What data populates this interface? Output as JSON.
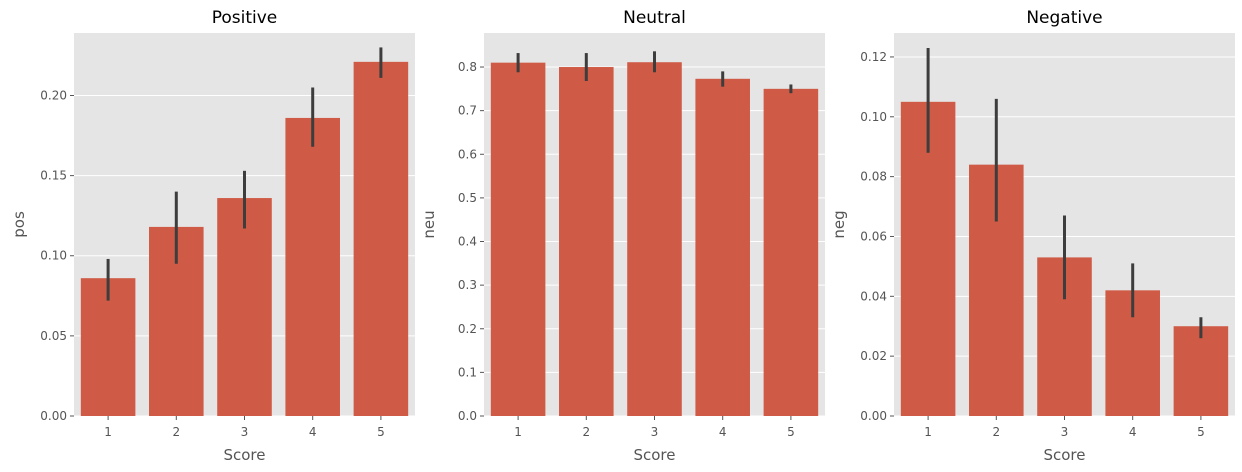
{
  "chart_data": [
    {
      "type": "bar",
      "title": "Positive",
      "xlabel": "Score",
      "ylabel": "pos",
      "categories": [
        "1",
        "2",
        "3",
        "4",
        "5"
      ],
      "values": [
        0.086,
        0.118,
        0.136,
        0.186,
        0.221
      ],
      "error_low": [
        0.072,
        0.095,
        0.117,
        0.168,
        0.211
      ],
      "error_high": [
        0.098,
        0.14,
        0.153,
        0.205,
        0.23
      ],
      "ylim": [
        0,
        0.239
      ],
      "yticks": [
        0.0,
        0.05,
        0.1,
        0.15,
        0.2
      ],
      "ytick_labels": [
        "0.00",
        "0.05",
        "0.10",
        "0.15",
        "0.20"
      ],
      "bar_color": "#cf5a45",
      "error_color": "#3d3d3d",
      "background": "#e5e5e5",
      "grid": true
    },
    {
      "type": "bar",
      "title": "Neutral",
      "xlabel": "Score",
      "ylabel": "neu",
      "categories": [
        "1",
        "2",
        "3",
        "4",
        "5"
      ],
      "values": [
        0.81,
        0.8,
        0.811,
        0.773,
        0.75
      ],
      "error_low": [
        0.788,
        0.768,
        0.788,
        0.755,
        0.74
      ],
      "error_high": [
        0.832,
        0.832,
        0.836,
        0.79,
        0.76
      ],
      "ylim": [
        0,
        0.878
      ],
      "yticks": [
        0.0,
        0.1,
        0.2,
        0.3,
        0.4,
        0.5,
        0.6,
        0.7,
        0.8
      ],
      "ytick_labels": [
        "0.0",
        "0.1",
        "0.2",
        "0.3",
        "0.4",
        "0.5",
        "0.6",
        "0.7",
        "0.8"
      ],
      "bar_color": "#cf5a45",
      "error_color": "#3d3d3d",
      "background": "#e5e5e5",
      "grid": true
    },
    {
      "type": "bar",
      "title": "Negative",
      "xlabel": "Score",
      "ylabel": "neg",
      "categories": [
        "1",
        "2",
        "3",
        "4",
        "5"
      ],
      "values": [
        0.105,
        0.084,
        0.053,
        0.042,
        0.03
      ],
      "error_low": [
        0.088,
        0.065,
        0.039,
        0.033,
        0.026
      ],
      "error_high": [
        0.123,
        0.106,
        0.067,
        0.051,
        0.033
      ],
      "ylim": [
        0,
        0.128
      ],
      "yticks": [
        0.0,
        0.02,
        0.04,
        0.06,
        0.08,
        0.1,
        0.12
      ],
      "ytick_labels": [
        "0.00",
        "0.02",
        "0.04",
        "0.06",
        "0.08",
        "0.10",
        "0.12"
      ],
      "bar_color": "#cf5a45",
      "error_color": "#3d3d3d",
      "background": "#e5e5e5",
      "grid": true
    }
  ]
}
